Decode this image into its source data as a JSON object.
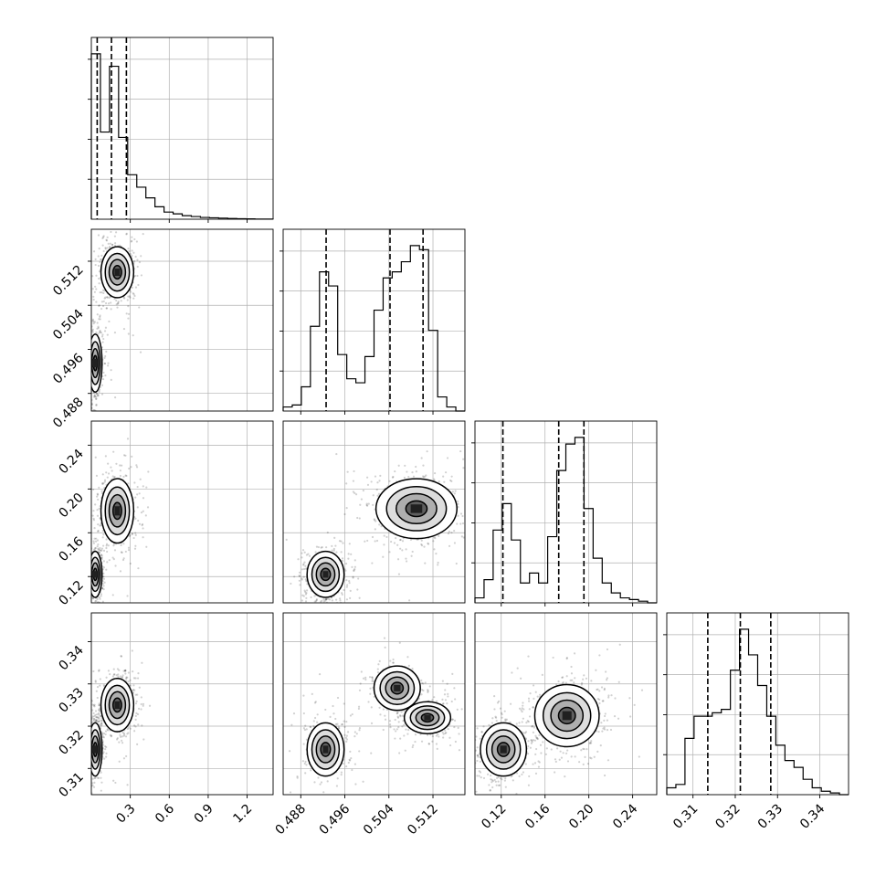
{
  "figure": {
    "type": "corner-plot"
  },
  "colors": {
    "ink": "#000000",
    "grid": "#b0b0b0",
    "scatter": "#000000",
    "density_dark": "#202020",
    "density_light": "#bdbdbd"
  },
  "chart_data": {
    "type": "corner",
    "params": 4,
    "axes": [
      {
        "range": [
          0.0,
          1.4
        ],
        "ticks": [
          0.3,
          0.6,
          0.9,
          1.2
        ],
        "tick_labels": [
          "0.3",
          "0.6",
          "0.9",
          "1.2"
        ]
      },
      {
        "range": [
          0.4848,
          0.5178
        ],
        "ticks": [
          0.488,
          0.496,
          0.504,
          0.512
        ],
        "tick_labels": [
          "0.488",
          "0.496",
          "0.504",
          "0.512"
        ]
      },
      {
        "range": [
          0.096,
          0.262
        ],
        "ticks": [
          0.12,
          0.16,
          0.2,
          0.24
        ],
        "tick_labels": [
          "0.12",
          "0.16",
          "0.20",
          "0.24"
        ]
      },
      {
        "range": [
          0.3038,
          0.3468
        ],
        "ticks": [
          0.31,
          0.32,
          0.33,
          0.34
        ],
        "tick_labels": [
          "0.31",
          "0.32",
          "0.33",
          "0.34"
        ]
      }
    ],
    "histograms": [
      {
        "param": 0,
        "edges_range": [
          0.0,
          1.4
        ],
        "counts": [
          0.93,
          0.49,
          0.86,
          0.46,
          0.25,
          0.18,
          0.12,
          0.07,
          0.04,
          0.03,
          0.02,
          0.015,
          0.01,
          0.008,
          0.006,
          0.004,
          0.003,
          0.002,
          0.001,
          0.001
        ],
        "quantiles": [
          0.045,
          0.155,
          0.27
        ]
      },
      {
        "param": 1,
        "edges_range": [
          0.4848,
          0.5178
        ],
        "counts": [
          0.02,
          0.03,
          0.12,
          0.42,
          0.69,
          0.62,
          0.28,
          0.16,
          0.14,
          0.27,
          0.5,
          0.66,
          0.69,
          0.74,
          0.82,
          0.8,
          0.4,
          0.07,
          0.02,
          0.0
        ],
        "quantiles": [
          0.4926,
          0.5042,
          0.5102
        ]
      },
      {
        "param": 2,
        "edges_range": [
          0.096,
          0.262
        ],
        "counts": [
          0.03,
          0.14,
          0.44,
          0.6,
          0.38,
          0.12,
          0.18,
          0.12,
          0.4,
          0.8,
          0.96,
          1.0,
          0.57,
          0.27,
          0.12,
          0.06,
          0.03,
          0.02,
          0.01,
          0.0
        ],
        "quantiles": [
          0.1215,
          0.1725,
          0.1955
        ]
      },
      {
        "param": 3,
        "edges_range": [
          0.3038,
          0.3468
        ],
        "counts": [
          0.04,
          0.06,
          0.33,
          0.46,
          0.46,
          0.48,
          0.5,
          0.73,
          0.97,
          0.82,
          0.64,
          0.46,
          0.29,
          0.2,
          0.16,
          0.09,
          0.04,
          0.02,
          0.01,
          0.0
        ],
        "quantiles": [
          0.3135,
          0.3212,
          0.3284
        ]
      }
    ],
    "pairs": [
      {
        "x": 0,
        "y": 1,
        "modes": [
          {
            "mx": 0.03,
            "my": 0.4935,
            "sx": 0.025,
            "sy": 0.0025,
            "w": 1.0
          },
          {
            "mx": 0.2,
            "my": 0.51,
            "sx": 0.06,
            "sy": 0.0022,
            "w": 1.0
          }
        ]
      },
      {
        "x": 0,
        "y": 2,
        "modes": [
          {
            "mx": 0.03,
            "my": 0.122,
            "sx": 0.025,
            "sy": 0.01,
            "w": 1.0
          },
          {
            "mx": 0.2,
            "my": 0.18,
            "sx": 0.06,
            "sy": 0.014,
            "w": 1.0
          }
        ]
      },
      {
        "x": 0,
        "y": 3,
        "modes": [
          {
            "mx": 0.03,
            "my": 0.3145,
            "sx": 0.025,
            "sy": 0.003,
            "w": 1.0
          },
          {
            "mx": 0.2,
            "my": 0.325,
            "sx": 0.06,
            "sy": 0.003,
            "w": 1.0
          }
        ]
      },
      {
        "x": 1,
        "y": 2,
        "modes": [
          {
            "mx": 0.4925,
            "my": 0.122,
            "sx": 0.0016,
            "sy": 0.01,
            "w": 0.9
          },
          {
            "mx": 0.509,
            "my": 0.182,
            "sx": 0.0035,
            "sy": 0.013,
            "w": 1.0
          }
        ]
      },
      {
        "x": 1,
        "y": 3,
        "modes": [
          {
            "mx": 0.4925,
            "my": 0.3145,
            "sx": 0.0016,
            "sy": 0.003,
            "w": 0.9
          },
          {
            "mx": 0.5055,
            "my": 0.329,
            "sx": 0.002,
            "sy": 0.0025,
            "w": 0.7
          },
          {
            "mx": 0.511,
            "my": 0.322,
            "sx": 0.002,
            "sy": 0.0018,
            "w": 1.0
          }
        ]
      },
      {
        "x": 2,
        "y": 3,
        "modes": [
          {
            "mx": 0.122,
            "my": 0.3145,
            "sx": 0.01,
            "sy": 0.003,
            "w": 0.8
          },
          {
            "mx": 0.18,
            "my": 0.3225,
            "sx": 0.014,
            "sy": 0.0035,
            "w": 1.0
          }
        ]
      }
    ],
    "grid": true
  }
}
